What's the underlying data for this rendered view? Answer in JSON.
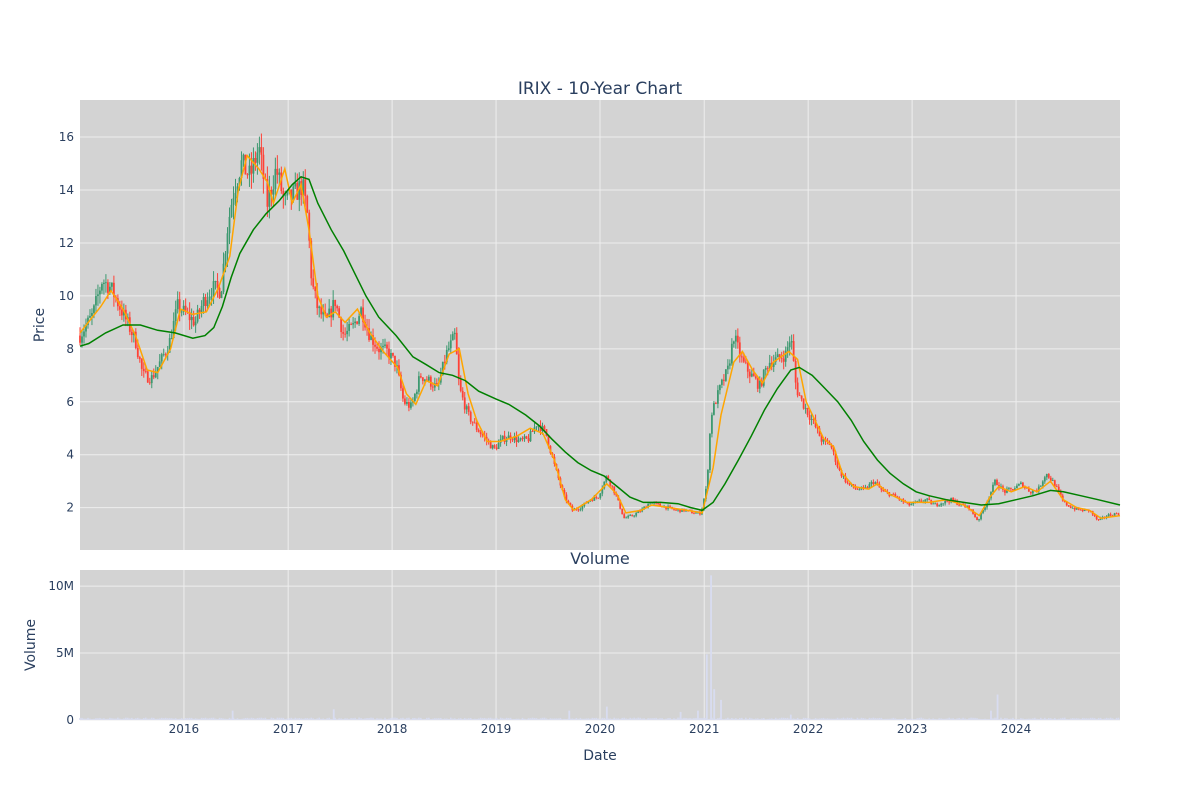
{
  "title": "IRIX - 10-Year Chart",
  "colors": {
    "plot_bg": "#d3d3d3",
    "grid": "#eeeeee",
    "increasing": "#3d9970",
    "decreasing": "#ff4136",
    "ma_short": "#ffa500",
    "ma_long": "#008000",
    "volume": "#d8dcf0",
    "text": "#2a3f5f"
  },
  "chart_data": [
    {
      "type": "candlestick",
      "title": "IRIX - 10-Year Chart",
      "xlabel": "",
      "ylabel": "Price",
      "x_range": [
        "2015-01-01",
        "2024-12-31"
      ],
      "ylim": [
        0.4,
        17.4
      ],
      "y_ticks": [
        2,
        4,
        6,
        8,
        10,
        12,
        14,
        16
      ],
      "grid": true,
      "price_path": [
        [
          "2015-01-01",
          8.5
        ],
        [
          "2015-02-15",
          9.3
        ],
        [
          "2015-03-20",
          10.6
        ],
        [
          "2015-04-20",
          10.3
        ],
        [
          "2015-05-20",
          9.6
        ],
        [
          "2015-06-20",
          8.9
        ],
        [
          "2015-07-15",
          8.3
        ],
        [
          "2015-08-10",
          7.0
        ],
        [
          "2015-09-10",
          6.9
        ],
        [
          "2015-10-15",
          7.6
        ],
        [
          "2015-11-10",
          8.2
        ],
        [
          "2015-12-10",
          9.6
        ],
        [
          "2016-01-10",
          9.3
        ],
        [
          "2016-02-10",
          9.0
        ],
        [
          "2016-03-10",
          9.8
        ],
        [
          "2016-04-10",
          10.3
        ],
        [
          "2016-05-10",
          10.2
        ],
        [
          "2016-06-01",
          12.5
        ],
        [
          "2016-06-20",
          13.8
        ],
        [
          "2016-07-20",
          15.0
        ],
        [
          "2016-08-20",
          14.5
        ],
        [
          "2016-09-20",
          15.6
        ],
        [
          "2016-10-20",
          13.5
        ],
        [
          "2016-11-20",
          14.8
        ],
        [
          "2016-12-20",
          13.5
        ],
        [
          "2017-01-20",
          13.8
        ],
        [
          "2017-02-20",
          14.2
        ],
        [
          "2017-03-10",
          13.0
        ],
        [
          "2017-03-25",
          10.5
        ],
        [
          "2017-04-15",
          9.5
        ],
        [
          "2017-05-15",
          9.0
        ],
        [
          "2017-06-15",
          9.8
        ],
        [
          "2017-07-15",
          8.5
        ],
        [
          "2017-08-15",
          8.8
        ],
        [
          "2017-09-15",
          9.5
        ],
        [
          "2017-10-15",
          8.5
        ],
        [
          "2017-11-15",
          8.0
        ],
        [
          "2017-12-15",
          7.9
        ],
        [
          "2018-01-15",
          7.4
        ],
        [
          "2018-02-10",
          6.0
        ],
        [
          "2018-03-10",
          5.8
        ],
        [
          "2018-04-10",
          7.0
        ],
        [
          "2018-05-10",
          6.8
        ],
        [
          "2018-06-10",
          6.5
        ],
        [
          "2018-07-10",
          7.8
        ],
        [
          "2018-08-10",
          8.5
        ],
        [
          "2018-08-25",
          6.5
        ],
        [
          "2018-09-25",
          5.5
        ],
        [
          "2018-10-25",
          5.0
        ],
        [
          "2018-11-25",
          4.6
        ],
        [
          "2018-12-25",
          4.2
        ],
        [
          "2019-01-25",
          4.6
        ],
        [
          "2019-02-25",
          4.7
        ],
        [
          "2019-03-25",
          4.5
        ],
        [
          "2019-04-25",
          4.6
        ],
        [
          "2019-05-25",
          5.2
        ],
        [
          "2019-06-25",
          4.8
        ],
        [
          "2019-07-25",
          3.6
        ],
        [
          "2019-08-25",
          2.5
        ],
        [
          "2019-09-25",
          1.9
        ],
        [
          "2019-10-25",
          2.0
        ],
        [
          "2019-11-25",
          2.3
        ],
        [
          "2019-12-25",
          2.4
        ],
        [
          "2020-01-25",
          3.2
        ],
        [
          "2020-02-25",
          2.5
        ],
        [
          "2020-03-25",
          1.6
        ],
        [
          "2020-04-25",
          1.7
        ],
        [
          "2020-05-25",
          1.9
        ],
        [
          "2020-06-25",
          2.2
        ],
        [
          "2020-07-25",
          2.1
        ],
        [
          "2020-08-25",
          2.0
        ],
        [
          "2020-09-25",
          1.9
        ],
        [
          "2020-10-25",
          1.9
        ],
        [
          "2020-11-25",
          1.8
        ],
        [
          "2020-12-20",
          1.8
        ],
        [
          "2021-01-10",
          2.8
        ],
        [
          "2021-01-25",
          5.5
        ],
        [
          "2021-02-25",
          6.5
        ],
        [
          "2021-03-25",
          7.2
        ],
        [
          "2021-04-15",
          8.5
        ],
        [
          "2021-05-15",
          7.5
        ],
        [
          "2021-06-15",
          7.0
        ],
        [
          "2021-07-15",
          6.6
        ],
        [
          "2021-08-15",
          7.5
        ],
        [
          "2021-09-15",
          7.6
        ],
        [
          "2021-10-15",
          7.8
        ],
        [
          "2021-11-01",
          8.5
        ],
        [
          "2021-11-20",
          6.5
        ],
        [
          "2021-12-20",
          5.8
        ],
        [
          "2022-01-20",
          5.2
        ],
        [
          "2022-02-20",
          4.5
        ],
        [
          "2022-03-20",
          4.4
        ],
        [
          "2022-04-20",
          3.4
        ],
        [
          "2022-05-20",
          2.9
        ],
        [
          "2022-06-20",
          2.7
        ],
        [
          "2022-07-20",
          2.7
        ],
        [
          "2022-08-20",
          3.0
        ],
        [
          "2022-09-20",
          2.6
        ],
        [
          "2022-10-20",
          2.5
        ],
        [
          "2022-11-20",
          2.3
        ],
        [
          "2022-12-20",
          2.1
        ],
        [
          "2023-01-20",
          2.2
        ],
        [
          "2023-02-20",
          2.3
        ],
        [
          "2023-03-20",
          2.1
        ],
        [
          "2023-04-20",
          2.2
        ],
        [
          "2023-05-20",
          2.3
        ],
        [
          "2023-06-20",
          2.1
        ],
        [
          "2023-07-20",
          2.0
        ],
        [
          "2023-08-20",
          1.5
        ],
        [
          "2023-09-20",
          2.2
        ],
        [
          "2023-10-20",
          3.0
        ],
        [
          "2023-11-20",
          2.6
        ],
        [
          "2023-12-20",
          2.7
        ],
        [
          "2024-01-20",
          2.9
        ],
        [
          "2024-02-20",
          2.6
        ],
        [
          "2024-03-20",
          2.7
        ],
        [
          "2024-04-15",
          3.3
        ],
        [
          "2024-05-15",
          2.9
        ],
        [
          "2024-06-15",
          2.2
        ],
        [
          "2024-07-15",
          2.0
        ],
        [
          "2024-08-15",
          1.9
        ],
        [
          "2024-09-15",
          1.9
        ],
        [
          "2024-10-15",
          1.5
        ],
        [
          "2024-11-15",
          1.7
        ],
        [
          "2024-12-31",
          1.8
        ]
      ],
      "ma_short": [
        [
          "2015-01-01",
          8.6
        ],
        [
          "2015-03-15",
          9.6
        ],
        [
          "2015-04-20",
          10.2
        ],
        [
          "2015-06-01",
          9.5
        ],
        [
          "2015-07-15",
          8.5
        ],
        [
          "2015-08-25",
          7.2
        ],
        [
          "2015-10-01",
          7.1
        ],
        [
          "2015-11-15",
          8.0
        ],
        [
          "2015-12-20",
          9.5
        ],
        [
          "2016-02-01",
          9.3
        ],
        [
          "2016-03-20",
          9.4
        ],
        [
          "2016-05-01",
          10.3
        ],
        [
          "2016-06-10",
          11.5
        ],
        [
          "2016-07-10",
          14.0
        ],
        [
          "2016-08-10",
          15.3
        ],
        [
          "2016-09-20",
          14.8
        ],
        [
          "2016-10-20",
          14.3
        ],
        [
          "2016-11-10",
          13.5
        ],
        [
          "2016-12-20",
          14.8
        ],
        [
          "2017-01-15",
          13.5
        ],
        [
          "2017-02-15",
          14.2
        ],
        [
          "2017-03-15",
          12.5
        ],
        [
          "2017-04-15",
          10.0
        ],
        [
          "2017-05-15",
          9.2
        ],
        [
          "2017-06-15",
          9.4
        ],
        [
          "2017-07-20",
          9.0
        ],
        [
          "2017-09-01",
          9.5
        ],
        [
          "2017-10-15",
          8.6
        ],
        [
          "2017-12-01",
          7.9
        ],
        [
          "2018-01-20",
          7.3
        ],
        [
          "2018-02-20",
          6.3
        ],
        [
          "2018-03-25",
          5.9
        ],
        [
          "2018-05-01",
          6.8
        ],
        [
          "2018-06-10",
          6.6
        ],
        [
          "2018-07-20",
          7.8
        ],
        [
          "2018-08-25",
          8.0
        ],
        [
          "2018-09-25",
          6.3
        ],
        [
          "2018-10-25",
          5.3
        ],
        [
          "2018-12-01",
          4.5
        ],
        [
          "2019-01-15",
          4.5
        ],
        [
          "2019-03-15",
          4.7
        ],
        [
          "2019-05-01",
          5.0
        ],
        [
          "2019-06-15",
          4.8
        ],
        [
          "2019-07-25",
          3.8
        ],
        [
          "2019-09-01",
          2.3
        ],
        [
          "2019-10-01",
          1.9
        ],
        [
          "2019-12-01",
          2.3
        ],
        [
          "2020-01-25",
          2.9
        ],
        [
          "2020-03-01",
          2.5
        ],
        [
          "2020-04-01",
          1.8
        ],
        [
          "2020-05-25",
          1.9
        ],
        [
          "2020-07-01",
          2.1
        ],
        [
          "2020-09-01",
          2.0
        ],
        [
          "2020-11-01",
          1.9
        ],
        [
          "2020-12-25",
          1.8
        ],
        [
          "2021-02-01",
          3.5
        ],
        [
          "2021-03-01",
          5.5
        ],
        [
          "2021-04-15",
          7.5
        ],
        [
          "2021-05-15",
          7.9
        ],
        [
          "2021-06-20",
          7.2
        ],
        [
          "2021-07-25",
          6.7
        ],
        [
          "2021-09-01",
          7.5
        ],
        [
          "2021-10-25",
          7.9
        ],
        [
          "2021-11-25",
          7.6
        ],
        [
          "2021-12-25",
          6.0
        ],
        [
          "2022-01-25",
          5.3
        ],
        [
          "2022-02-25",
          4.6
        ],
        [
          "2022-04-01",
          4.3
        ],
        [
          "2022-05-01",
          3.3
        ],
        [
          "2022-06-10",
          2.8
        ],
        [
          "2022-08-01",
          2.7
        ],
        [
          "2022-09-01",
          2.9
        ],
        [
          "2022-10-15",
          2.5
        ],
        [
          "2022-12-15",
          2.2
        ],
        [
          "2023-03-01",
          2.2
        ],
        [
          "2023-05-01",
          2.3
        ],
        [
          "2023-07-01",
          2.1
        ],
        [
          "2023-08-25",
          1.7
        ],
        [
          "2023-10-01",
          2.4
        ],
        [
          "2023-11-01",
          2.8
        ],
        [
          "2023-12-15",
          2.6
        ],
        [
          "2024-02-01",
          2.8
        ],
        [
          "2024-03-15",
          2.6
        ],
        [
          "2024-05-01",
          3.0
        ],
        [
          "2024-06-15",
          2.3
        ],
        [
          "2024-08-01",
          2.0
        ],
        [
          "2024-09-15",
          1.9
        ],
        [
          "2024-10-25",
          1.6
        ],
        [
          "2024-12-31",
          1.7
        ]
      ],
      "ma_long": [
        [
          "2015-01-01",
          8.1
        ],
        [
          "2015-02-01",
          8.2
        ],
        [
          "2015-04-01",
          8.6
        ],
        [
          "2015-06-01",
          8.9
        ],
        [
          "2015-08-01",
          8.9
        ],
        [
          "2015-10-01",
          8.7
        ],
        [
          "2015-12-01",
          8.6
        ],
        [
          "2016-02-01",
          8.4
        ],
        [
          "2016-03-15",
          8.5
        ],
        [
          "2016-04-15",
          8.8
        ],
        [
          "2016-05-15",
          9.6
        ],
        [
          "2016-06-15",
          10.7
        ],
        [
          "2016-07-15",
          11.6
        ],
        [
          "2016-09-01",
          12.5
        ],
        [
          "2016-10-15",
          13.1
        ],
        [
          "2016-12-01",
          13.6
        ],
        [
          "2017-01-15",
          14.2
        ],
        [
          "2017-02-15",
          14.5
        ],
        [
          "2017-03-15",
          14.4
        ],
        [
          "2017-04-15",
          13.5
        ],
        [
          "2017-06-01",
          12.5
        ],
        [
          "2017-07-15",
          11.7
        ],
        [
          "2017-08-25",
          10.8
        ],
        [
          "2017-10-01",
          10.0
        ],
        [
          "2017-11-15",
          9.2
        ],
        [
          "2018-01-15",
          8.5
        ],
        [
          "2018-03-15",
          7.7
        ],
        [
          "2018-05-01",
          7.4
        ],
        [
          "2018-06-15",
          7.1
        ],
        [
          "2018-08-01",
          7.0
        ],
        [
          "2018-09-15",
          6.8
        ],
        [
          "2018-11-01",
          6.4
        ],
        [
          "2019-01-01",
          6.1
        ],
        [
          "2019-02-15",
          5.9
        ],
        [
          "2019-04-15",
          5.5
        ],
        [
          "2019-06-01",
          5.1
        ],
        [
          "2019-07-15",
          4.6
        ],
        [
          "2019-09-01",
          4.1
        ],
        [
          "2019-10-15",
          3.7
        ],
        [
          "2019-12-01",
          3.4
        ],
        [
          "2020-01-15",
          3.2
        ],
        [
          "2020-03-01",
          2.8
        ],
        [
          "2020-04-15",
          2.4
        ],
        [
          "2020-06-01",
          2.2
        ],
        [
          "2020-08-01",
          2.2
        ],
        [
          "2020-10-01",
          2.15
        ],
        [
          "2020-11-15",
          2.0
        ],
        [
          "2020-12-25",
          1.9
        ],
        [
          "2021-02-01",
          2.2
        ],
        [
          "2021-03-15",
          2.9
        ],
        [
          "2021-05-01",
          3.8
        ],
        [
          "2021-06-15",
          4.7
        ],
        [
          "2021-08-01",
          5.7
        ],
        [
          "2021-09-15",
          6.5
        ],
        [
          "2021-11-01",
          7.2
        ],
        [
          "2021-12-01",
          7.3
        ],
        [
          "2022-01-15",
          7.0
        ],
        [
          "2022-03-01",
          6.5
        ],
        [
          "2022-04-15",
          6.0
        ],
        [
          "2022-06-01",
          5.3
        ],
        [
          "2022-07-15",
          4.5
        ],
        [
          "2022-09-01",
          3.8
        ],
        [
          "2022-10-15",
          3.3
        ],
        [
          "2022-12-01",
          2.9
        ],
        [
          "2023-01-15",
          2.6
        ],
        [
          "2023-03-01",
          2.45
        ],
        [
          "2023-05-01",
          2.3
        ],
        [
          "2023-07-01",
          2.2
        ],
        [
          "2023-09-01",
          2.1
        ],
        [
          "2023-11-01",
          2.15
        ],
        [
          "2024-01-01",
          2.3
        ],
        [
          "2024-03-01",
          2.45
        ],
        [
          "2024-05-01",
          2.65
        ],
        [
          "2024-06-15",
          2.6
        ],
        [
          "2024-08-15",
          2.45
        ],
        [
          "2024-10-15",
          2.3
        ],
        [
          "2024-12-31",
          2.1
        ]
      ]
    },
    {
      "type": "bar",
      "title": "Volume",
      "xlabel": "Date",
      "ylabel": "Volume",
      "ylim": [
        0,
        11200000
      ],
      "y_ticks": [
        0,
        5000000,
        10000000
      ],
      "y_tick_labels": [
        "0",
        "5M",
        "10M"
      ],
      "x_ticks": [
        "2016-01-01",
        "2017-01-01",
        "2018-01-01",
        "2019-01-01",
        "2020-01-01",
        "2021-01-01",
        "2022-01-01",
        "2023-01-01",
        "2024-01-01"
      ],
      "x_tick_labels": [
        "2016",
        "2017",
        "2018",
        "2019",
        "2020",
        "2021",
        "2022",
        "2023",
        "2024"
      ],
      "baseline_volume": 120000,
      "volume_spikes": [
        [
          "2016-06-20",
          700000
        ],
        [
          "2017-06-10",
          800000
        ],
        [
          "2019-09-15",
          700000
        ],
        [
          "2020-01-25",
          1000000
        ],
        [
          "2020-10-10",
          600000
        ],
        [
          "2020-12-10",
          700000
        ],
        [
          "2021-01-10",
          4900000
        ],
        [
          "2021-01-25",
          10800000
        ],
        [
          "2021-02-05",
          2300000
        ],
        [
          "2021-03-01",
          1500000
        ],
        [
          "2021-11-01",
          400000
        ],
        [
          "2023-10-05",
          700000
        ],
        [
          "2023-10-28",
          1900000
        ]
      ],
      "grid": true
    }
  ]
}
